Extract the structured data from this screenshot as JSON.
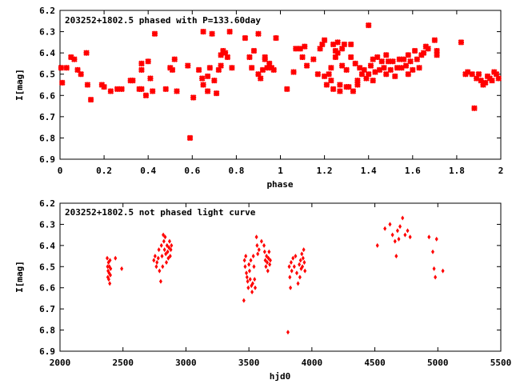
{
  "chart_data": [
    {
      "type": "scatter",
      "title": "203252+1802.5 phased with P=133.60day",
      "xlabel": "phase",
      "ylabel": "I[mag]",
      "xlim": [
        0,
        2
      ],
      "ylim": [
        6.2,
        6.9
      ],
      "y_inverted": true,
      "marker_color": "#ff0000",
      "marker": "filled-star",
      "grid": false,
      "x_ticks": [
        0,
        0.2,
        0.4,
        0.6,
        0.8,
        1,
        1.2,
        1.4,
        1.6,
        1.8,
        2
      ],
      "x_tick_labels": [
        "0",
        "0.2",
        "0.4",
        "0.6",
        "0.8",
        "1",
        "1.2",
        "1.4",
        "1.6",
        "1.8",
        "2"
      ],
      "y_ticks": [
        6.2,
        6.3,
        6.4,
        6.5,
        6.6,
        6.7,
        6.8,
        6.9
      ],
      "y_tick_labels": [
        "6.2",
        "6.3",
        "6.4",
        "6.5",
        "6.6",
        "6.7",
        "6.8",
        "6.9"
      ],
      "points": [
        [
          0.005,
          6.47
        ],
        [
          0.01,
          6.54
        ],
        [
          0.03,
          6.47
        ],
        [
          0.05,
          6.42
        ],
        [
          0.065,
          6.43
        ],
        [
          0.08,
          6.48
        ],
        [
          0.095,
          6.5
        ],
        [
          0.12,
          6.4
        ],
        [
          0.125,
          6.55
        ],
        [
          0.14,
          6.62
        ],
        [
          0.19,
          6.55
        ],
        [
          0.2,
          6.56
        ],
        [
          0.23,
          6.58
        ],
        [
          0.26,
          6.57
        ],
        [
          0.28,
          6.57
        ],
        [
          0.32,
          6.53
        ],
        [
          0.33,
          6.53
        ],
        [
          0.36,
          6.57
        ],
        [
          0.37,
          6.45
        ],
        [
          0.37,
          6.48
        ],
        [
          0.37,
          6.57
        ],
        [
          0.39,
          6.6
        ],
        [
          0.4,
          6.44
        ],
        [
          0.41,
          6.52
        ],
        [
          0.43,
          6.31
        ],
        [
          0.42,
          6.58
        ],
        [
          0.48,
          6.57
        ],
        [
          0.5,
          6.47
        ],
        [
          0.51,
          6.48
        ],
        [
          0.52,
          6.43
        ],
        [
          0.53,
          6.58
        ],
        [
          0.58,
          6.46
        ],
        [
          0.59,
          6.8
        ],
        [
          0.605,
          6.61
        ],
        [
          0.63,
          6.48
        ],
        [
          0.645,
          6.52
        ],
        [
          0.65,
          6.3
        ],
        [
          0.65,
          6.55
        ],
        [
          0.67,
          6.51
        ],
        [
          0.67,
          6.58
        ],
        [
          0.68,
          6.47
        ],
        [
          0.69,
          6.31
        ],
        [
          0.7,
          6.53
        ],
        [
          0.71,
          6.59
        ],
        [
          0.72,
          6.48
        ],
        [
          0.73,
          6.46
        ],
        [
          0.73,
          6.41
        ],
        [
          0.74,
          6.39
        ],
        [
          0.75,
          6.4
        ],
        [
          0.76,
          6.42
        ],
        [
          0.77,
          6.3
        ],
        [
          0.78,
          6.47
        ],
        [
          0.84,
          6.33
        ],
        [
          0.86,
          6.42
        ],
        [
          0.87,
          6.47
        ],
        [
          0.88,
          6.39
        ],
        [
          0.9,
          6.31
        ],
        [
          0.9,
          6.5
        ],
        [
          0.91,
          6.52
        ],
        [
          0.92,
          6.48
        ],
        [
          0.93,
          6.43
        ],
        [
          0.93,
          6.42
        ],
        [
          0.94,
          6.47
        ],
        [
          0.95,
          6.45
        ],
        [
          0.96,
          6.47
        ],
        [
          0.97,
          6.48
        ],
        [
          0.98,
          6.33
        ],
        [
          1.03,
          6.57
        ],
        [
          1.06,
          6.49
        ],
        [
          1.07,
          6.38
        ],
        [
          1.09,
          6.38
        ],
        [
          1.1,
          6.42
        ],
        [
          1.11,
          6.37
        ],
        [
          1.12,
          6.46
        ],
        [
          1.15,
          6.43
        ],
        [
          1.17,
          6.5
        ],
        [
          1.18,
          6.38
        ],
        [
          1.19,
          6.36
        ],
        [
          1.2,
          6.34
        ],
        [
          1.2,
          6.51
        ],
        [
          1.21,
          6.55
        ],
        [
          1.22,
          6.5
        ],
        [
          1.23,
          6.47
        ],
        [
          1.23,
          6.53
        ],
        [
          1.24,
          6.57
        ],
        [
          1.24,
          6.36
        ],
        [
          1.25,
          6.42
        ],
        [
          1.25,
          6.39
        ],
        [
          1.26,
          6.4
        ],
        [
          1.26,
          6.35
        ],
        [
          1.27,
          6.55
        ],
        [
          1.27,
          6.58
        ],
        [
          1.28,
          6.46
        ],
        [
          1.28,
          6.38
        ],
        [
          1.29,
          6.36
        ],
        [
          1.3,
          6.48
        ],
        [
          1.3,
          6.56
        ],
        [
          1.31,
          6.56
        ],
        [
          1.32,
          6.42
        ],
        [
          1.32,
          6.36
        ],
        [
          1.33,
          6.58
        ],
        [
          1.34,
          6.45
        ],
        [
          1.35,
          6.53
        ],
        [
          1.35,
          6.55
        ],
        [
          1.36,
          6.47
        ],
        [
          1.37,
          6.5
        ],
        [
          1.38,
          6.48
        ],
        [
          1.39,
          6.52
        ],
        [
          1.4,
          6.27
        ],
        [
          1.4,
          6.5
        ],
        [
          1.41,
          6.46
        ],
        [
          1.42,
          6.43
        ],
        [
          1.42,
          6.53
        ],
        [
          1.43,
          6.49
        ],
        [
          1.44,
          6.42
        ],
        [
          1.45,
          6.48
        ],
        [
          1.46,
          6.44
        ],
        [
          1.47,
          6.47
        ],
        [
          1.48,
          6.41
        ],
        [
          1.48,
          6.5
        ],
        [
          1.49,
          6.44
        ],
        [
          1.5,
          6.48
        ],
        [
          1.51,
          6.44
        ],
        [
          1.52,
          6.51
        ],
        [
          1.53,
          6.47
        ],
        [
          1.54,
          6.43
        ],
        [
          1.55,
          6.47
        ],
        [
          1.56,
          6.43
        ],
        [
          1.57,
          6.46
        ],
        [
          1.58,
          6.41
        ],
        [
          1.58,
          6.5
        ],
        [
          1.59,
          6.44
        ],
        [
          1.6,
          6.48
        ],
        [
          1.61,
          6.39
        ],
        [
          1.62,
          6.43
        ],
        [
          1.63,
          6.47
        ],
        [
          1.64,
          6.41
        ],
        [
          1.65,
          6.4
        ],
        [
          1.66,
          6.37
        ],
        [
          1.67,
          6.38
        ],
        [
          1.7,
          6.34
        ],
        [
          1.71,
          6.41
        ],
        [
          1.71,
          6.39
        ],
        [
          1.82,
          6.35
        ],
        [
          1.84,
          6.5
        ],
        [
          1.85,
          6.49
        ],
        [
          1.87,
          6.5
        ],
        [
          1.88,
          6.66
        ],
        [
          1.89,
          6.52
        ],
        [
          1.9,
          6.5
        ],
        [
          1.91,
          6.53
        ],
        [
          1.92,
          6.55
        ],
        [
          1.93,
          6.54
        ],
        [
          1.94,
          6.51
        ],
        [
          1.95,
          6.52
        ],
        [
          1.96,
          6.53
        ],
        [
          1.97,
          6.49
        ],
        [
          1.98,
          6.5
        ],
        [
          1.99,
          6.52
        ]
      ]
    },
    {
      "type": "scatter",
      "title": "203252+1802.5 not phased light curve",
      "xlabel": "hjd0",
      "ylabel": "I[mag]",
      "xlim": [
        2000,
        5500
      ],
      "ylim": [
        6.2,
        6.9
      ],
      "y_inverted": true,
      "marker_color": "#ff0000",
      "marker": "filled-diamond",
      "grid": false,
      "x_ticks": [
        2000,
        2500,
        3000,
        3500,
        4000,
        4500,
        5000,
        5500
      ],
      "x_tick_labels": [
        "2000",
        "2500",
        "3000",
        "3500",
        "4000",
        "4500",
        "5000",
        "5500"
      ],
      "y_ticks": [
        6.2,
        6.3,
        6.4,
        6.5,
        6.6,
        6.7,
        6.8,
        6.9
      ],
      "y_tick_labels": [
        "6.2",
        "6.3",
        "6.4",
        "6.5",
        "6.6",
        "6.7",
        "6.8",
        "6.9"
      ],
      "points": [
        [
          2375,
          6.46
        ],
        [
          2378,
          6.5
        ],
        [
          2380,
          6.55
        ],
        [
          2382,
          6.52
        ],
        [
          2385,
          6.48
        ],
        [
          2387,
          6.56
        ],
        [
          2390,
          6.53
        ],
        [
          2392,
          6.5
        ],
        [
          2395,
          6.58
        ],
        [
          2397,
          6.47
        ],
        [
          2400,
          6.54
        ],
        [
          2402,
          6.51
        ],
        [
          2440,
          6.46
        ],
        [
          2490,
          6.51
        ],
        [
          2745,
          6.47
        ],
        [
          2755,
          6.45
        ],
        [
          2765,
          6.5
        ],
        [
          2770,
          6.48
        ],
        [
          2780,
          6.46
        ],
        [
          2785,
          6.42
        ],
        [
          2790,
          6.52
        ],
        [
          2800,
          6.57
        ],
        [
          2805,
          6.4
        ],
        [
          2810,
          6.45
        ],
        [
          2815,
          6.5
        ],
        [
          2820,
          6.35
        ],
        [
          2825,
          6.38
        ],
        [
          2830,
          6.42
        ],
        [
          2835,
          6.36
        ],
        [
          2840,
          6.44
        ],
        [
          2845,
          6.48
        ],
        [
          2850,
          6.4
        ],
        [
          2855,
          6.43
        ],
        [
          2860,
          6.46
        ],
        [
          2865,
          6.41
        ],
        [
          2870,
          6.38
        ],
        [
          2875,
          6.45
        ],
        [
          2880,
          6.42
        ],
        [
          2885,
          6.4
        ],
        [
          3460,
          6.66
        ],
        [
          3465,
          6.47
        ],
        [
          3470,
          6.5
        ],
        [
          3475,
          6.45
        ],
        [
          3480,
          6.53
        ],
        [
          3485,
          6.55
        ],
        [
          3490,
          6.57
        ],
        [
          3495,
          6.6
        ],
        [
          3500,
          6.49
        ],
        [
          3505,
          6.52
        ],
        [
          3510,
          6.56
        ],
        [
          3515,
          6.47
        ],
        [
          3520,
          6.59
        ],
        [
          3525,
          6.62
        ],
        [
          3530,
          6.58
        ],
        [
          3535,
          6.45
        ],
        [
          3540,
          6.5
        ],
        [
          3545,
          6.56
        ],
        [
          3550,
          6.6
        ],
        [
          3560,
          6.36
        ],
        [
          3565,
          6.4
        ],
        [
          3570,
          6.44
        ],
        [
          3580,
          6.42
        ],
        [
          3600,
          6.38
        ],
        [
          3620,
          6.4
        ],
        [
          3625,
          6.43
        ],
        [
          3630,
          6.47
        ],
        [
          3635,
          6.5
        ],
        [
          3640,
          6.45
        ],
        [
          3645,
          6.48
        ],
        [
          3650,
          6.52
        ],
        [
          3655,
          6.46
        ],
        [
          3660,
          6.43
        ],
        [
          3665,
          6.49
        ],
        [
          3670,
          6.47
        ],
        [
          3810,
          6.81
        ],
        [
          3820,
          6.5
        ],
        [
          3825,
          6.55
        ],
        [
          3830,
          6.6
        ],
        [
          3835,
          6.48
        ],
        [
          3840,
          6.52
        ],
        [
          3850,
          6.46
        ],
        [
          3860,
          6.5
        ],
        [
          3870,
          6.45
        ],
        [
          3880,
          6.53
        ],
        [
          3890,
          6.58
        ],
        [
          3900,
          6.49
        ],
        [
          3905,
          6.55
        ],
        [
          3910,
          6.47
        ],
        [
          3915,
          6.51
        ],
        [
          3920,
          6.44
        ],
        [
          3925,
          6.5
        ],
        [
          3930,
          6.46
        ],
        [
          3935,
          6.42
        ],
        [
          3940,
          6.48
        ],
        [
          3945,
          6.52
        ],
        [
          4520,
          6.4
        ],
        [
          4580,
          6.32
        ],
        [
          4620,
          6.3
        ],
        [
          4640,
          6.35
        ],
        [
          4660,
          6.38
        ],
        [
          4670,
          6.45
        ],
        [
          4680,
          6.33
        ],
        [
          4690,
          6.37
        ],
        [
          4700,
          6.31
        ],
        [
          4720,
          6.27
        ],
        [
          4740,
          6.35
        ],
        [
          4760,
          6.33
        ],
        [
          4780,
          6.36
        ],
        [
          4930,
          6.36
        ],
        [
          4960,
          6.43
        ],
        [
          4970,
          6.51
        ],
        [
          4980,
          6.55
        ],
        [
          4990,
          6.37
        ],
        [
          5040,
          6.52
        ]
      ]
    }
  ]
}
